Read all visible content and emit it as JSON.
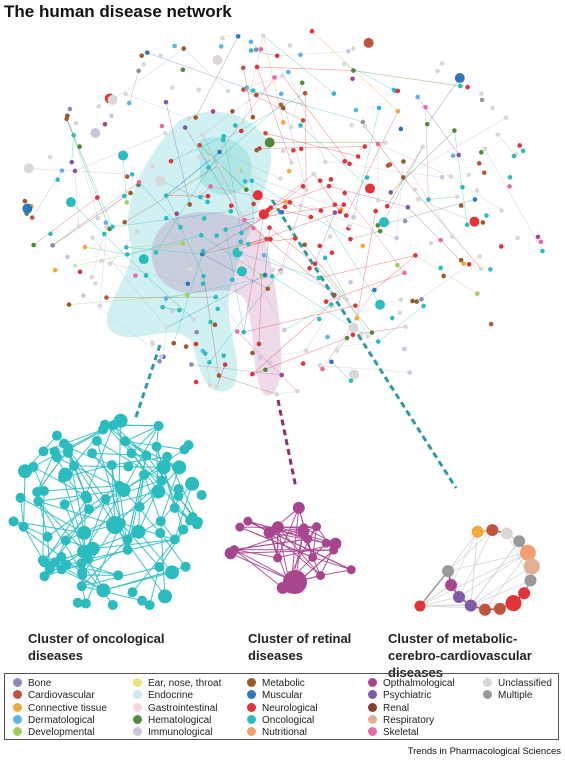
{
  "header": {
    "title": "The human disease network"
  },
  "clusters": [
    {
      "label": "Cluster of oncological diseases"
    },
    {
      "label": "Cluster of retinal diseases"
    },
    {
      "label": "Cluster of metabolic-cerebro-cardiovascular diseases"
    }
  ],
  "legend": {
    "items": [
      {
        "label": "Bone",
        "color": "#8e8ab8"
      },
      {
        "label": "Cardiovascular",
        "color": "#c0533e"
      },
      {
        "label": "Connective tissue",
        "color": "#f2a93b"
      },
      {
        "label": "Dermatological",
        "color": "#5bb4e5"
      },
      {
        "label": "Developmental",
        "color": "#9fce63"
      },
      {
        "label": "Ear, nose, throat",
        "color": "#e6e67a"
      },
      {
        "label": "Endocrine",
        "color": "#cfe6f5"
      },
      {
        "label": "Gastrointestinal",
        "color": "#f7d4e3"
      },
      {
        "label": "Hematological",
        "color": "#4f8a3d"
      },
      {
        "label": "Immunological",
        "color": "#c9c6e0"
      },
      {
        "label": "Metabolic",
        "color": "#9c5a2b"
      },
      {
        "label": "Muscular",
        "color": "#2e78b7"
      },
      {
        "label": "Neurological",
        "color": "#e0333a"
      },
      {
        "label": "Oncological",
        "color": "#2bbcc0"
      },
      {
        "label": "Nutritional",
        "color": "#f0a070"
      },
      {
        "label": "Opthalmological",
        "color": "#a8458f"
      },
      {
        "label": "Psychiatric",
        "color": "#7d5ba6"
      },
      {
        "label": "Renal",
        "color": "#8a3b2a"
      },
      {
        "label": "Respiratory",
        "color": "#e0b090"
      },
      {
        "label": "Skeletal",
        "color": "#e86aa8"
      },
      {
        "label": "Unclassified",
        "color": "#d8d8d8"
      },
      {
        "label": "Multiple",
        "color": "#999999"
      }
    ]
  },
  "footer": {
    "source": "Trends in Pharmacological Sciences"
  }
}
